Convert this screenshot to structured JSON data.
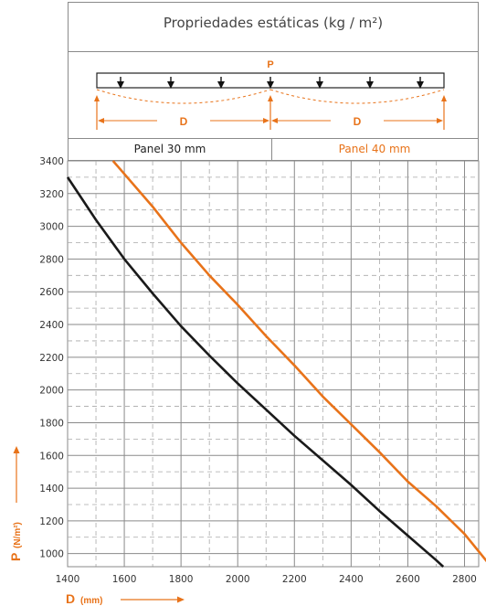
{
  "header": {
    "title": "Propriedades estáticas (kg / m²)"
  },
  "diagram": {
    "load_label": "P",
    "span_label_left": "D",
    "span_label_right": "D"
  },
  "legend": {
    "panel_30": "Panel 30 mm",
    "panel_40": "Panel 40 mm"
  },
  "axes": {
    "x_title": "D",
    "x_unit": "(mm)",
    "y_title": "P",
    "y_unit": "(N/m²)"
  },
  "colors": {
    "panel_30": "#1a1a1a",
    "panel_40": "#e8731a",
    "grid": "#8a8a8a",
    "accent": "#e8731a"
  },
  "chart_data": {
    "type": "line",
    "xlim": [
      1400,
      2850
    ],
    "ylim": [
      920,
      3400
    ],
    "x_ticks": [
      1400,
      1600,
      1800,
      2000,
      2200,
      2400,
      2600,
      2800
    ],
    "y_ticks": [
      1000,
      1200,
      1400,
      1600,
      1800,
      2000,
      2200,
      2400,
      2600,
      2800,
      3000,
      3200,
      3400
    ],
    "grid": true,
    "series": [
      {
        "name": "Panel 30 mm",
        "color": "#1a1a1a",
        "points": [
          [
            1400,
            3300
          ],
          [
            1500,
            3040
          ],
          [
            1600,
            2800
          ],
          [
            1700,
            2590
          ],
          [
            1800,
            2390
          ],
          [
            1900,
            2210
          ],
          [
            2000,
            2040
          ],
          [
            2100,
            1880
          ],
          [
            2200,
            1720
          ],
          [
            2300,
            1570
          ],
          [
            2400,
            1420
          ],
          [
            2500,
            1260
          ],
          [
            2600,
            1110
          ],
          [
            2700,
            960
          ],
          [
            2725,
            920
          ]
        ]
      },
      {
        "name": "Panel 40 mm",
        "color": "#e8731a",
        "points": [
          [
            1560,
            3400
          ],
          [
            1700,
            3120
          ],
          [
            1800,
            2900
          ],
          [
            1900,
            2700
          ],
          [
            2000,
            2520
          ],
          [
            2100,
            2330
          ],
          [
            2200,
            2150
          ],
          [
            2300,
            1960
          ],
          [
            2400,
            1790
          ],
          [
            2500,
            1620
          ],
          [
            2600,
            1440
          ],
          [
            2700,
            1290
          ],
          [
            2800,
            1120
          ],
          [
            2880,
            950
          ],
          [
            2895,
            920
          ]
        ]
      }
    ]
  }
}
